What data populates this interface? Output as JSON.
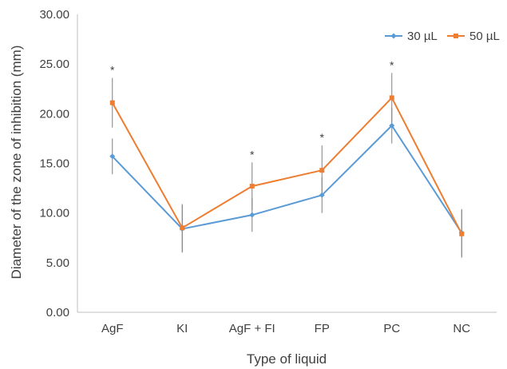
{
  "chart_data": {
    "type": "line",
    "title": "",
    "xlabel": "Type of liquid",
    "ylabel": "Diameter of the zone of inhibition (mm)",
    "ylim": [
      0,
      30
    ],
    "yticks": [
      "0.00",
      "5.00",
      "10.00",
      "15.00",
      "20.00",
      "25.00",
      "30.00"
    ],
    "categories": [
      "AgF",
      "KI",
      "AgF + FI",
      "FP",
      "PC",
      "NC"
    ],
    "series": [
      {
        "name": "30 µL",
        "color": "#5b9bd5",
        "marker": "diamond",
        "values": [
          15.7,
          8.4,
          9.8,
          11.8,
          18.8,
          8.0
        ],
        "error": [
          1.8,
          2.4,
          1.7,
          1.8,
          1.8,
          2.4
        ]
      },
      {
        "name": "50 µL",
        "color": "#ed7d31",
        "marker": "square",
        "values": [
          21.1,
          8.5,
          12.7,
          14.3,
          21.6,
          7.9
        ],
        "error": [
          2.5,
          2.4,
          2.4,
          2.5,
          2.5,
          2.4
        ]
      }
    ],
    "significance": [
      "*",
      "",
      "*",
      "*",
      "*",
      ""
    ],
    "grid": false,
    "legend": "top-right"
  }
}
